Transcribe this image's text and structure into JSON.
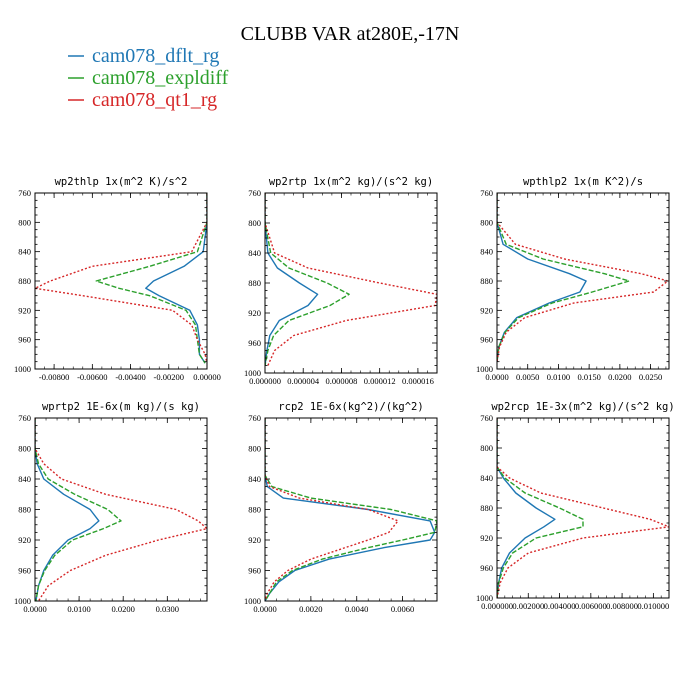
{
  "title": "CLUBB VAR at280E,-17N",
  "colors": {
    "blue": "#1f77b4",
    "green": "#2ca02c",
    "red": "#d62728",
    "axis": "#000000"
  },
  "legend": [
    {
      "label": "cam078_dflt_rg",
      "color": "#1f77b4",
      "style": "solid"
    },
    {
      "label": "cam078_expldiff",
      "color": "#2ca02c",
      "style": "dashed"
    },
    {
      "label": "cam078_qt1_rg",
      "color": "#d62728",
      "style": "dotted"
    }
  ],
  "chart_data": [
    {
      "type": "line",
      "title": "wp2thlp   1x(m^2 K)/s^2",
      "xlim": [
        -0.009,
        0.0
      ],
      "ylim": [
        760,
        1000
      ],
      "y_reversed": true,
      "xticks": [
        -0.008,
        -0.006,
        -0.004,
        -0.002,
        0.0
      ],
      "xtick_labels": [
        "-0.00800",
        "-0.00600",
        "-0.00400",
        "-0.00200",
        "0.00000"
      ],
      "yticks": [
        760,
        800,
        840,
        880,
        920,
        960,
        1000
      ],
      "y": [
        750,
        800,
        840,
        860,
        880,
        890,
        900,
        920,
        940,
        960,
        980,
        992
      ],
      "series": [
        {
          "name": "cam078_dflt_rg",
          "values": [
            0.0,
            0.0,
            -0.0002,
            -0.0012,
            -0.0028,
            -0.0032,
            -0.0025,
            -0.0009,
            -0.0005,
            -0.0004,
            -0.0004,
            -0.0001
          ]
        },
        {
          "name": "cam078_expldiff",
          "values": [
            0.0,
            0.0,
            -0.0005,
            -0.003,
            -0.0058,
            -0.0046,
            -0.003,
            -0.0011,
            -0.0006,
            -0.0005,
            -0.0004,
            -0.0001
          ]
        },
        {
          "name": "cam078_qt1_rg",
          "values": [
            0.0,
            0.0,
            -0.0008,
            -0.006,
            -0.0082,
            -0.009,
            -0.0065,
            -0.0018,
            -0.0008,
            -0.0005,
            -0.0001,
            0.0
          ]
        }
      ]
    },
    {
      "type": "line",
      "title": "wp2rtp   1x(m^2 kg)/(s^2 kg)",
      "xlim": [
        0.0,
        1.8e-05
      ],
      "ylim": [
        760,
        1000
      ],
      "y_reversed": true,
      "xticks": [
        0.0,
        4e-06,
        8e-06,
        1.2e-05,
        1.6e-05
      ],
      "xtick_labels": [
        "0.000000",
        "0.000004",
        "0.000008",
        "0.000012",
        "0.000016"
      ],
      "yticks": [
        760,
        800,
        840,
        880,
        920,
        960,
        1000
      ],
      "y": [
        750,
        800,
        840,
        860,
        880,
        895,
        910,
        930,
        950,
        970,
        990
      ],
      "series": [
        {
          "name": "cam078_dflt_rg",
          "values": [
            0.0,
            0.0,
            3e-07,
            1.3e-06,
            3.6e-06,
            5.5e-06,
            4.5e-06,
            1.5e-06,
            5e-07,
            2e-07,
            0.0
          ]
        },
        {
          "name": "cam078_expldiff",
          "values": [
            0.0,
            0.0,
            6e-07,
            2.5e-06,
            6.5e-06,
            8.8e-06,
            6.8e-06,
            2.5e-06,
            9e-07,
            3e-07,
            0.0
          ]
        },
        {
          "name": "cam078_qt1_rg",
          "values": [
            0.0,
            0.0,
            1e-06,
            4.5e-06,
            1.2e-05,
            1.8e-05,
            1.78e-05,
            8.5e-06,
            3e-06,
            1e-06,
            3e-07
          ]
        }
      ]
    },
    {
      "type": "line",
      "title": "wpthlp2   1x(m K^2)/s",
      "xlim": [
        0.0,
        0.028
      ],
      "ylim": [
        760,
        1000
      ],
      "y_reversed": true,
      "xticks": [
        0.0,
        0.005,
        0.01,
        0.015,
        0.02,
        0.025
      ],
      "xtick_labels": [
        "0.0000",
        "0.0050",
        "0.0100",
        "0.0150",
        "0.0200",
        "0.0250"
      ],
      "yticks": [
        760,
        800,
        840,
        880,
        920,
        960,
        1000
      ],
      "y": [
        750,
        800,
        830,
        850,
        870,
        880,
        895,
        910,
        930,
        950,
        970,
        990
      ],
      "series": [
        {
          "name": "cam078_dflt_rg",
          "values": [
            0.0,
            0.0,
            0.001,
            0.005,
            0.0118,
            0.0145,
            0.0135,
            0.0085,
            0.0032,
            0.0012,
            0.0003,
            0.0
          ]
        },
        {
          "name": "cam078_expldiff",
          "values": [
            0.0,
            0.0,
            0.0015,
            0.0075,
            0.0175,
            0.0215,
            0.0155,
            0.009,
            0.0035,
            0.0013,
            0.0003,
            0.0
          ]
        },
        {
          "name": "cam078_qt1_rg",
          "values": [
            0.0,
            0.0,
            0.003,
            0.011,
            0.0235,
            0.0278,
            0.0255,
            0.0125,
            0.0045,
            0.0015,
            0.0004,
            0.0
          ]
        }
      ]
    },
    {
      "type": "line",
      "title": "wprtp2   1E-6x(m kg)/(s kg)",
      "xlim": [
        0.0,
        0.039
      ],
      "ylim": [
        760,
        1000
      ],
      "y_reversed": true,
      "xticks": [
        0.0,
        0.01,
        0.02,
        0.03
      ],
      "xtick_labels": [
        "0.0000",
        "0.0100",
        "0.0200",
        "0.0300"
      ],
      "yticks": [
        760,
        800,
        840,
        880,
        920,
        960,
        1000
      ],
      "y": [
        750,
        800,
        820,
        840,
        860,
        880,
        895,
        905,
        920,
        940,
        960,
        980,
        1000
      ],
      "series": [
        {
          "name": "cam078_dflt_rg",
          "values": [
            0.0,
            0.0,
            0.0005,
            0.002,
            0.0065,
            0.0125,
            0.0145,
            0.0125,
            0.0075,
            0.004,
            0.002,
            0.0008,
            0.0002
          ]
        },
        {
          "name": "cam078_expldiff",
          "values": [
            0.0,
            0.0,
            0.0008,
            0.003,
            0.009,
            0.0165,
            0.0195,
            0.0155,
            0.0085,
            0.0045,
            0.0022,
            0.0008,
            0.0002
          ]
        },
        {
          "name": "cam078_qt1_rg",
          "values": [
            0.0,
            0.0,
            0.002,
            0.006,
            0.016,
            0.032,
            0.037,
            0.039,
            0.028,
            0.016,
            0.008,
            0.003,
            0.0008
          ]
        }
      ]
    },
    {
      "type": "line",
      "title": "rcp2   1E-6x(kg^2)/(kg^2)",
      "xlim": [
        0.0,
        0.0075
      ],
      "ylim": [
        760,
        1000
      ],
      "y_reversed": true,
      "xticks": [
        0.0,
        0.002,
        0.004,
        0.006
      ],
      "xtick_labels": [
        "0.0000",
        "0.0020",
        "0.0040",
        "0.0060"
      ],
      "yticks": [
        760,
        800,
        840,
        880,
        920,
        960,
        1000
      ],
      "y": [
        750,
        835,
        850,
        865,
        880,
        895,
        910,
        920,
        930,
        945,
        960,
        975,
        990,
        1000
      ],
      "series": [
        {
          "name": "cam078_dflt_rg",
          "values": [
            0.0,
            0.0,
            0.0001,
            0.0008,
            0.0045,
            0.0072,
            0.0074,
            0.0072,
            0.0052,
            0.0028,
            0.0013,
            0.0006,
            0.0002,
            0.0
          ]
        },
        {
          "name": "cam078_expldiff",
          "values": [
            0.0,
            0.0,
            0.0003,
            0.002,
            0.0055,
            0.0075,
            0.0074,
            0.006,
            0.0045,
            0.0025,
            0.0012,
            0.0005,
            0.0002,
            0.0
          ]
        },
        {
          "name": "cam078_qt1_rg",
          "values": [
            0.0,
            0.0,
            0.0002,
            0.0015,
            0.0045,
            0.0058,
            0.0054,
            0.0045,
            0.0035,
            0.002,
            0.001,
            0.0004,
            0.0001,
            0.0
          ]
        }
      ]
    },
    {
      "type": "line",
      "title": "wp2rcp   1E-3x(m^2 kg)/(s^2 kg)",
      "xlim": [
        0.0,
        0.011
      ],
      "ylim": [
        760,
        1000
      ],
      "y_reversed": true,
      "xticks": [
        0.0,
        0.002,
        0.004,
        0.006,
        0.008,
        0.01
      ],
      "xtick_labels": [
        "0.000000",
        "0.002000",
        "0.004000",
        "0.006000",
        "0.008000",
        "0.010000"
      ],
      "yticks": [
        760,
        800,
        840,
        880,
        920,
        960,
        1000
      ],
      "y": [
        750,
        825,
        840,
        860,
        880,
        895,
        905,
        920,
        940,
        960,
        980,
        1000
      ],
      "series": [
        {
          "name": "cam078_dflt_rg",
          "values": [
            0.0,
            0.0,
            0.0004,
            0.0012,
            0.0025,
            0.0037,
            0.003,
            0.0018,
            0.0008,
            0.0003,
            0.0001,
            0.0
          ]
        },
        {
          "name": "cam078_expldiff",
          "values": [
            0.0,
            0.0,
            0.0005,
            0.0018,
            0.004,
            0.0055,
            0.0055,
            0.0025,
            0.001,
            0.0004,
            0.0001,
            0.0
          ]
        },
        {
          "name": "cam078_qt1_rg",
          "values": [
            0.0,
            0.0,
            0.0008,
            0.0028,
            0.0068,
            0.0098,
            0.011,
            0.0055,
            0.002,
            0.0007,
            0.0002,
            0.0
          ]
        }
      ]
    }
  ]
}
